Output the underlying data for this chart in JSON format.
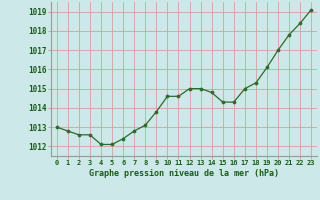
{
  "x": [
    0,
    1,
    2,
    3,
    4,
    5,
    6,
    7,
    8,
    9,
    10,
    11,
    12,
    13,
    14,
    15,
    16,
    17,
    18,
    19,
    20,
    21,
    22,
    23
  ],
  "y": [
    1013.0,
    1012.8,
    1012.6,
    1012.6,
    1012.1,
    1012.1,
    1012.4,
    1012.8,
    1013.1,
    1013.8,
    1014.6,
    1014.6,
    1015.0,
    1015.0,
    1014.8,
    1014.3,
    1014.3,
    1015.0,
    1015.3,
    1016.1,
    1017.0,
    1017.8,
    1018.4,
    1019.1
  ],
  "line_color": "#2d6a2d",
  "marker_color": "#2d6a2d",
  "bg_color": "#cce8e8",
  "plot_bg_color": "#cce8e8",
  "grid_color": "#d4a0a0",
  "xlabel": "Graphe pression niveau de la mer (hPa)",
  "xlabel_color": "#1a5c1a",
  "tick_color": "#1a5c1a",
  "axis_color": "#999999",
  "ylim_min": 1011.5,
  "ylim_max": 1019.5,
  "xlim_min": -0.5,
  "xlim_max": 23.5,
  "yticks": [
    1012,
    1013,
    1014,
    1015,
    1016,
    1017,
    1018,
    1019
  ],
  "xticks": [
    0,
    1,
    2,
    3,
    4,
    5,
    6,
    7,
    8,
    9,
    10,
    11,
    12,
    13,
    14,
    15,
    16,
    17,
    18,
    19,
    20,
    21,
    22,
    23
  ]
}
